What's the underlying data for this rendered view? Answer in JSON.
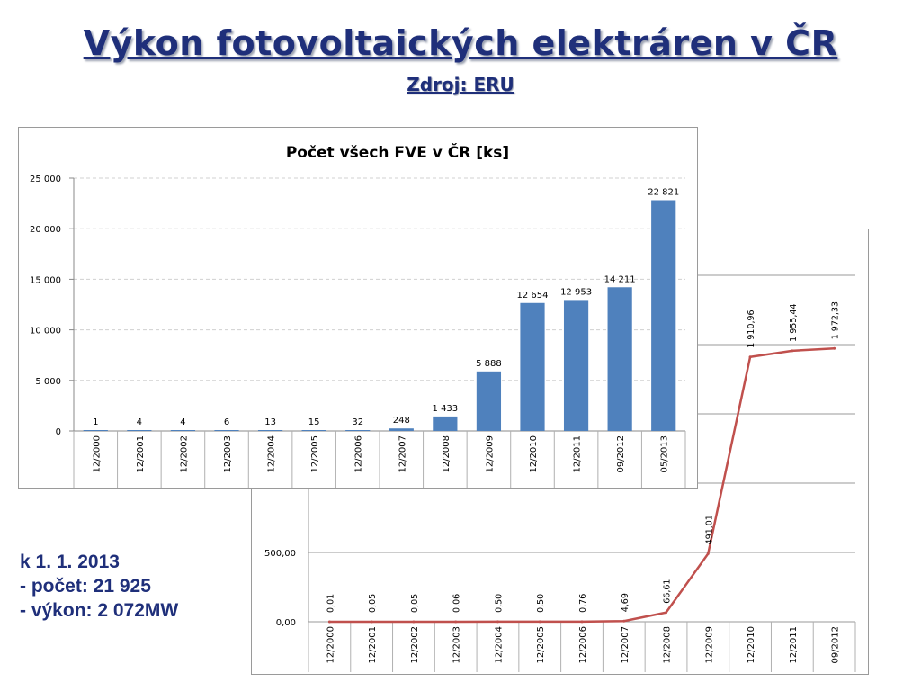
{
  "slide": {
    "title": "Výkon fotovoltaických elektráren v ČR",
    "subtitle": "Zdroj: ERU"
  },
  "note": {
    "line1": "k 1. 1. 2013",
    "line2": "- počet: 21 925",
    "line3": "- výkon: 2 072MW"
  },
  "chart_data": [
    {
      "type": "bar",
      "title": "Počet všech FVE v ČR [ks]",
      "categories": [
        "12/2000",
        "12/2001",
        "12/2002",
        "12/2003",
        "12/2004",
        "12/2005",
        "12/2006",
        "12/2007",
        "12/2008",
        "12/2009",
        "12/2010",
        "12/2011",
        "09/2012",
        "05/2013"
      ],
      "values": [
        1,
        4,
        4,
        6,
        13,
        15,
        32,
        248,
        1433,
        5888,
        12654,
        12953,
        14211,
        22821
      ],
      "value_labels": [
        "1",
        "4",
        "4",
        "6",
        "13",
        "15",
        "32",
        "248",
        "1 433",
        "5 888",
        "12 654",
        "12 953",
        "14 211",
        "22 821"
      ],
      "ylim": [
        0,
        25000
      ],
      "yticks": [
        0,
        5000,
        10000,
        15000,
        20000,
        25000
      ],
      "ytick_labels": [
        "0",
        "5 000",
        "10 000",
        "15 000",
        "20 000",
        "25 000"
      ],
      "grid": true,
      "bar_color": "#4f81bd"
    },
    {
      "type": "line",
      "categories": [
        "12/2000",
        "12/2001",
        "12/2002",
        "12/2003",
        "12/2004",
        "12/2005",
        "12/2006",
        "12/2007",
        "12/2008",
        "12/2009",
        "12/2010",
        "12/2011",
        "09/2012"
      ],
      "values": [
        0.01,
        0.05,
        0.05,
        0.06,
        0.5,
        0.5,
        0.76,
        4.69,
        66.61,
        491.01,
        1910.96,
        1955.44,
        1972.33
      ],
      "value_labels": [
        "0,01",
        "0,05",
        "0,05",
        "0,06",
        "0,50",
        "0,50",
        "0,76",
        "4,69",
        "66,61",
        "491,01",
        "1 910,96",
        "1 955,44",
        "1 972,33"
      ],
      "ylim": [
        0,
        2500
      ],
      "yticks": [
        0,
        500,
        1000,
        1500,
        2000,
        2500
      ],
      "ytick_labels": [
        "0,00",
        "500,00",
        "",
        "",
        "",
        ""
      ],
      "grid": true,
      "line_color": "#c0504d"
    }
  ]
}
